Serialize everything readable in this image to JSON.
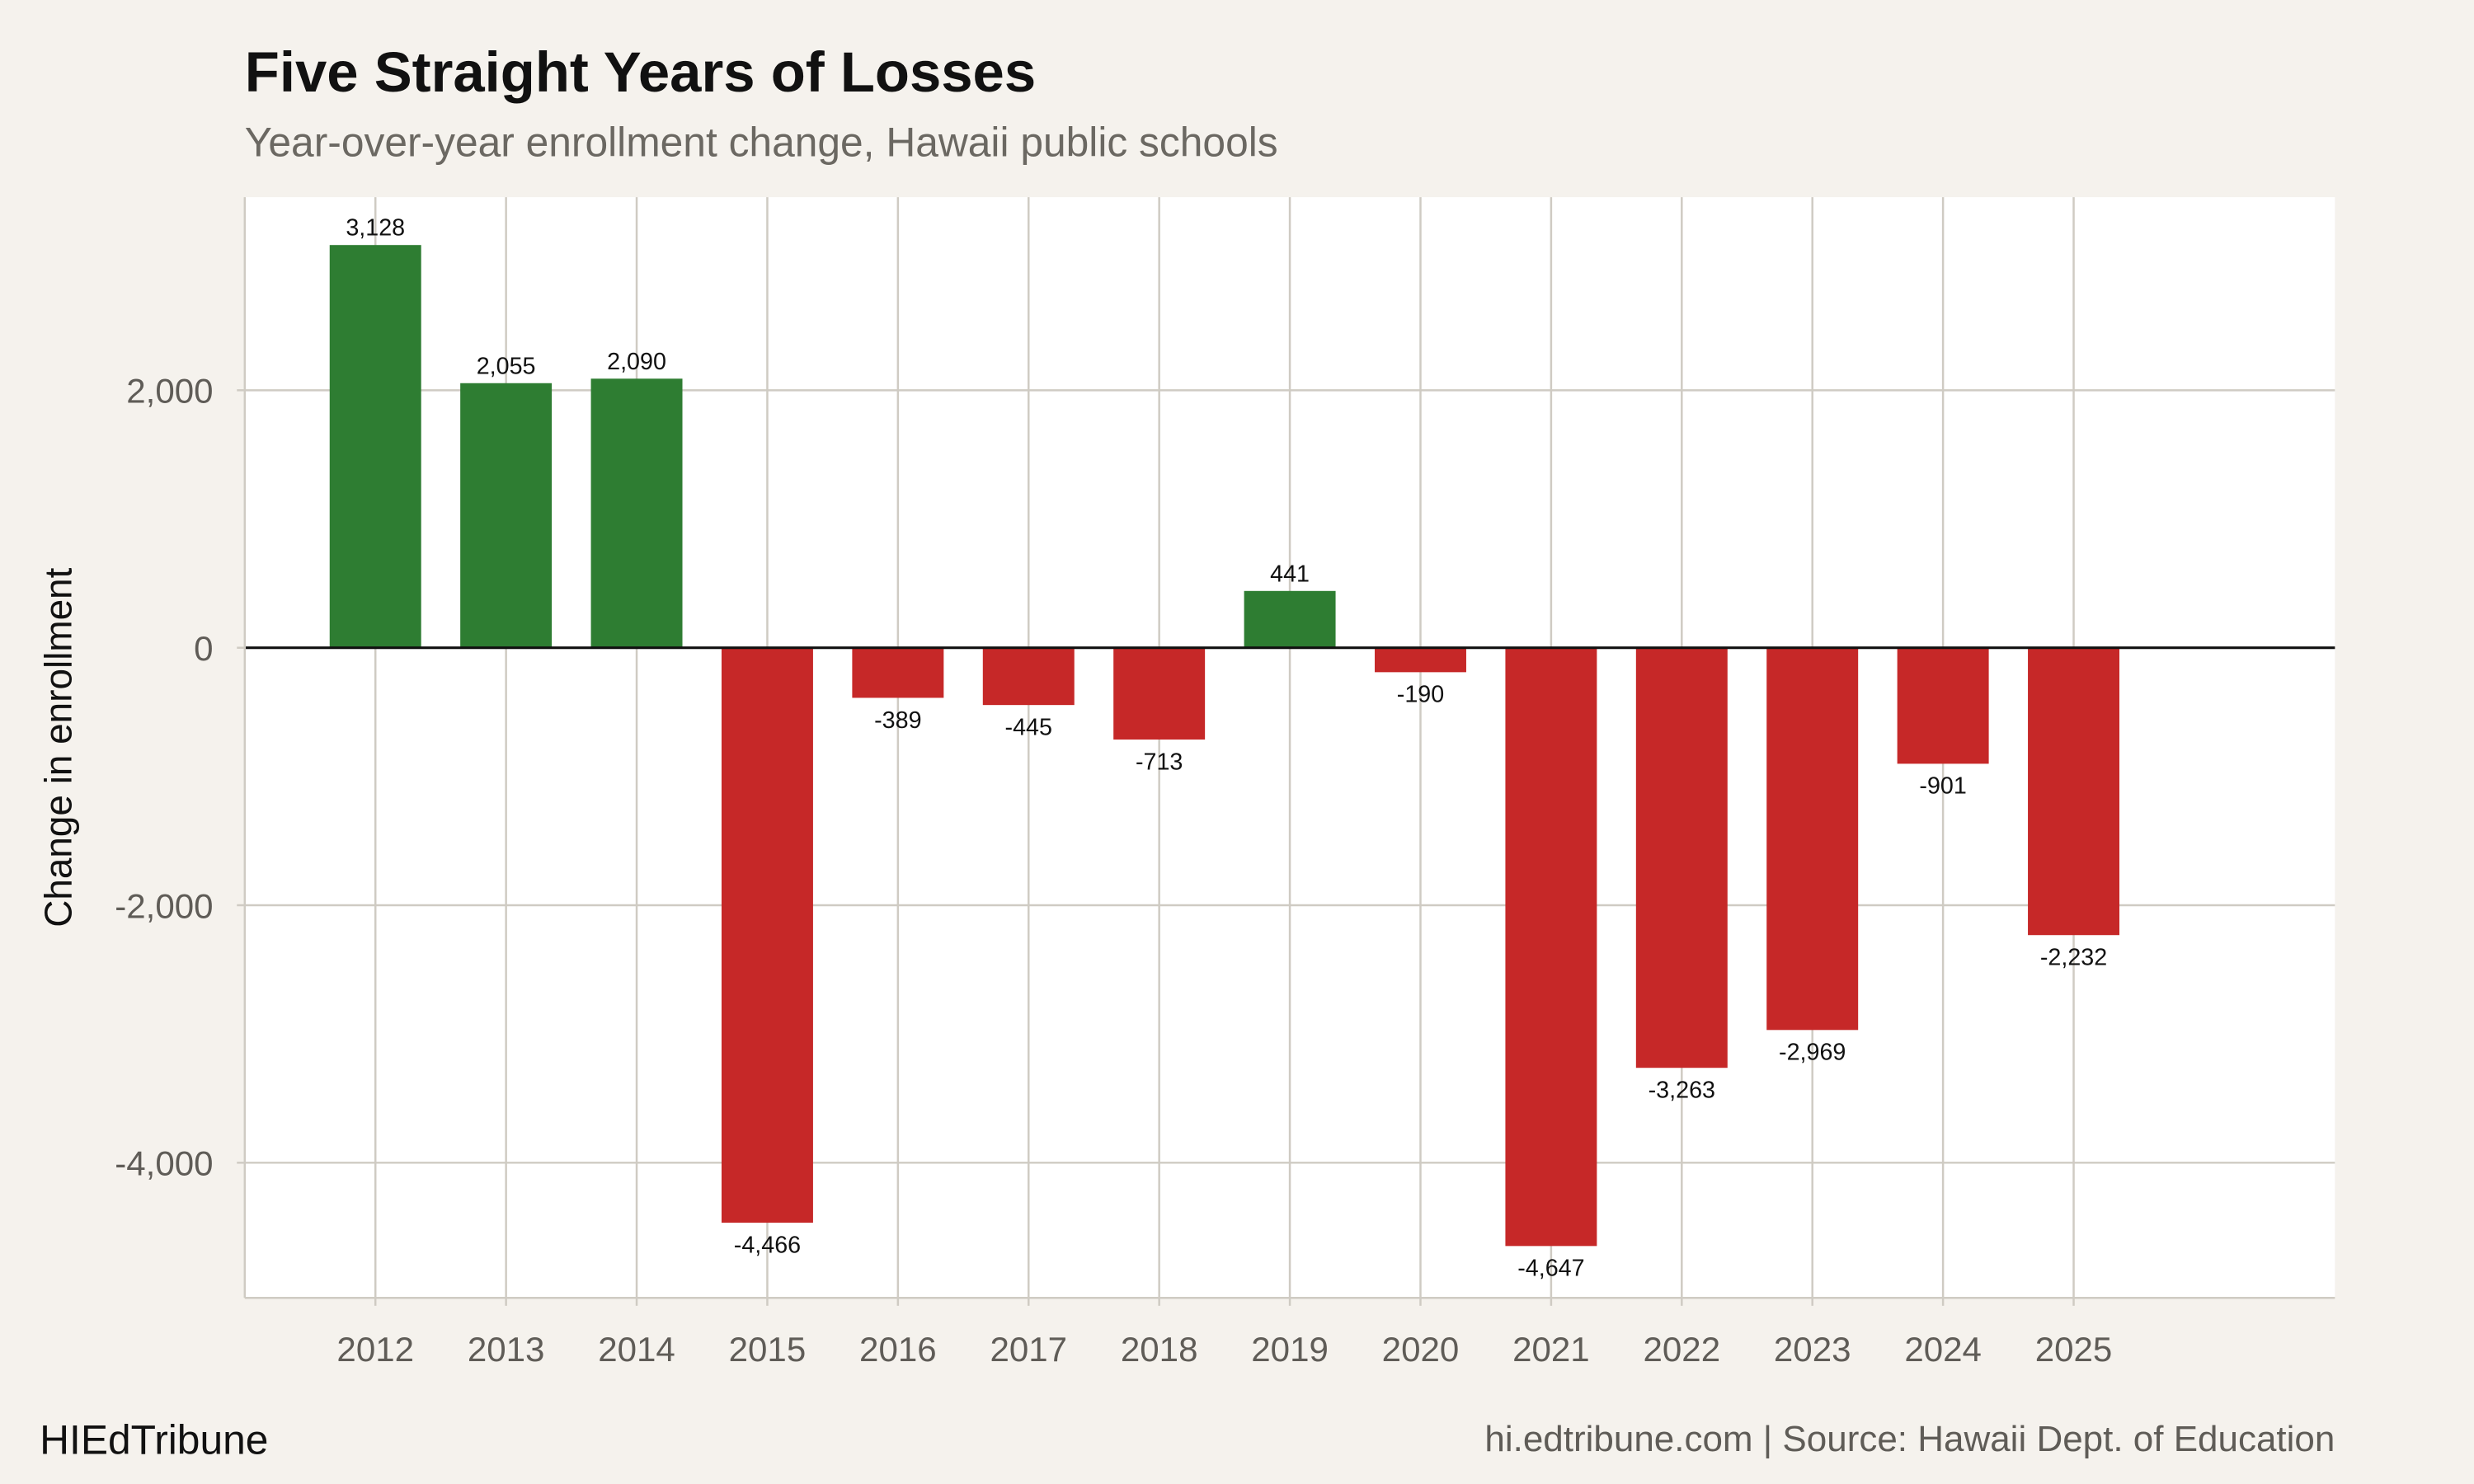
{
  "chart_data": {
    "type": "bar",
    "title": "Five Straight Years of Losses",
    "subtitle": "Year-over-year enrollment change, Hawaii public schools",
    "xlabel": "",
    "ylabel": "Change in enrollment",
    "categories": [
      "2012",
      "2013",
      "2014",
      "2015",
      "2016",
      "2017",
      "2018",
      "2019",
      "2020",
      "2021",
      "2022",
      "2023",
      "2024",
      "2025"
    ],
    "values": [
      3128,
      2055,
      2090,
      -4466,
      -389,
      -445,
      -713,
      441,
      -190,
      -4647,
      -3263,
      -2969,
      -901,
      -2232
    ],
    "value_labels": [
      "3,128",
      "2,055",
      "2,090",
      "-4,466",
      "-389",
      "-445",
      "-713",
      "441",
      "-190",
      "-4,647",
      "-3,263",
      "-2,969",
      "-901",
      "-2,232"
    ],
    "xlim": [
      2011,
      2027
    ],
    "ylim": [
      -5050,
      3500
    ],
    "yticks": [
      2000,
      0,
      -2000,
      -4000
    ],
    "ytick_labels": [
      "2,000",
      "0",
      "-2,000",
      "-4,000"
    ],
    "grid": true,
    "colors": {
      "positive": "#2e7d32",
      "negative": "#c62828",
      "background": "#f5f2ed",
      "panel": "#ffffff"
    }
  },
  "footer": {
    "brand": "HIEdTribune",
    "source": "hi.edtribune.com | Source: Hawaii Dept. of Education"
  }
}
